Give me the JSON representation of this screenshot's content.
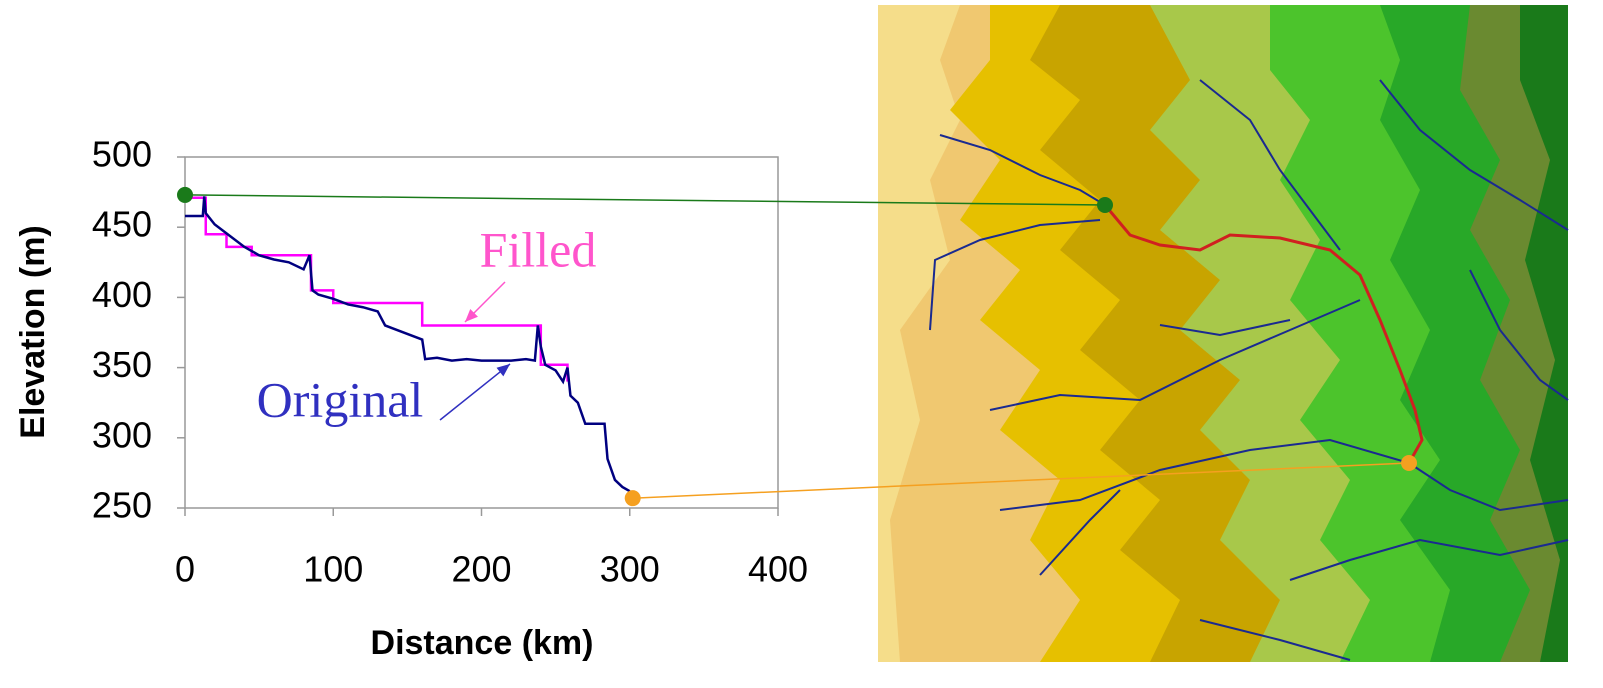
{
  "chart_data": {
    "type": "line",
    "xlabel": "Distance (km)",
    "ylabel": "Elevation (m)",
    "xlim": [
      0,
      400
    ],
    "xticks": [
      0,
      100,
      200,
      300,
      400
    ],
    "ylim": [
      250,
      500
    ],
    "yticks": [
      250,
      300,
      350,
      400,
      450,
      500
    ],
    "grid": false,
    "series": [
      {
        "name": "Filled",
        "color": "#ff00ff",
        "x": [
          0,
          14,
          14,
          28,
          28,
          45,
          45,
          85,
          85,
          100,
          100,
          160,
          160,
          240,
          240,
          258,
          258
        ],
        "values": [
          471,
          471,
          445,
          445,
          436,
          436,
          430,
          430,
          405,
          405,
          396,
          396,
          380,
          380,
          352,
          352,
          340
        ]
      },
      {
        "name": "Original",
        "color": "#000080",
        "x": [
          0,
          12,
          13,
          14,
          20,
          30,
          40,
          50,
          60,
          70,
          80,
          84,
          86,
          90,
          100,
          110,
          120,
          130,
          135,
          140,
          150,
          160,
          162,
          170,
          180,
          190,
          200,
          210,
          220,
          230,
          236,
          238,
          240,
          243,
          250,
          255,
          258,
          260,
          265,
          270,
          283,
          285,
          290,
          295,
          300
        ],
        "values": [
          458,
          458,
          472,
          460,
          452,
          444,
          436,
          430,
          427,
          425,
          420,
          430,
          405,
          402,
          399,
          395,
          393,
          390,
          380,
          378,
          374,
          370,
          356,
          357,
          355,
          356,
          355,
          355,
          355,
          356,
          355,
          380,
          365,
          352,
          348,
          340,
          350,
          330,
          325,
          310,
          310,
          285,
          270,
          265,
          262
        ]
      }
    ],
    "points": [
      {
        "x": 0,
        "y": 473,
        "color": "#1a7a1a"
      },
      {
        "x": 302,
        "y": 257,
        "color": "#f5a020"
      }
    ],
    "annotations": [
      {
        "text": "Filled",
        "color": "#ff55cc"
      },
      {
        "text": "Original",
        "color": "#3030c0"
      }
    ]
  }
}
